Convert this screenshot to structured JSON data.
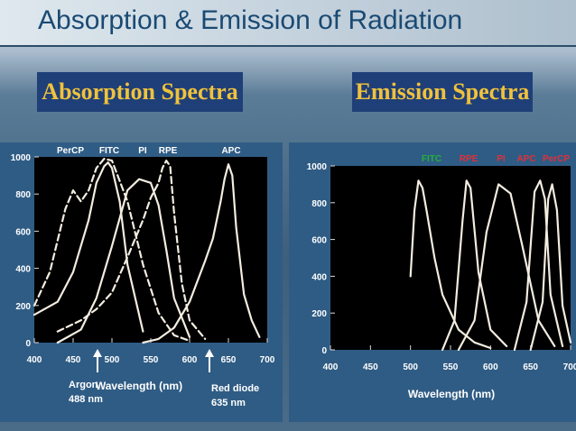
{
  "slide": {
    "title": "Absorption & Emission of Radiation"
  },
  "absorption": {
    "label": "Absorption Spectra",
    "dye_labels": [
      "PerCP",
      "FITC",
      "PI",
      "RPE",
      "APC"
    ],
    "y_ticks": [
      "0",
      "200",
      "400",
      "600",
      "800",
      "1000"
    ],
    "x_ticks": [
      "400",
      "450",
      "500",
      "550",
      "600",
      "650",
      "700"
    ],
    "x_label": "Wavelength (nm)",
    "laser_argon": {
      "name": "Argon",
      "wavelength": "488 nm"
    },
    "laser_red": {
      "name": "Red diode",
      "wavelength": "635 nm"
    }
  },
  "emission": {
    "label": "Emission Spectra",
    "dye_labels": [
      "FITC",
      "RPE",
      "PI",
      "APC",
      "PerCP"
    ],
    "dye_colors": [
      "#22b03a",
      "#e0303a",
      "#e0303a",
      "#e0303a",
      "#e0303a"
    ],
    "y_ticks": [
      "0",
      "200",
      "400",
      "600",
      "800",
      "1000"
    ],
    "x_ticks": [
      "400",
      "450",
      "500",
      "550",
      "600",
      "650",
      "700"
    ],
    "x_label": "Wavelength (nm)"
  },
  "chart_data": [
    {
      "type": "line",
      "name": "Absorption Spectra",
      "xlabel": "Wavelength (nm)",
      "ylabel": "",
      "xlim": [
        400,
        700
      ],
      "ylim": [
        0,
        1000
      ],
      "series": [
        {
          "name": "PerCP",
          "x": [
            400,
            420,
            440,
            450,
            460,
            470,
            480,
            490,
            500,
            520,
            540,
            560,
            580,
            600
          ],
          "y": [
            200,
            380,
            720,
            820,
            760,
            820,
            940,
            990,
            980,
            760,
            420,
            160,
            40,
            10
          ]
        },
        {
          "name": "FITC",
          "x": [
            400,
            430,
            450,
            470,
            480,
            490,
            495,
            500,
            510,
            520,
            540
          ],
          "y": [
            150,
            220,
            380,
            660,
            860,
            950,
            970,
            940,
            760,
            420,
            60
          ]
        },
        {
          "name": "PI",
          "x": [
            430,
            460,
            480,
            500,
            520,
            535,
            550,
            560,
            570,
            580,
            600
          ],
          "y": [
            0,
            70,
            240,
            520,
            820,
            880,
            860,
            740,
            500,
            240,
            30
          ]
        },
        {
          "name": "RPE",
          "x": [
            430,
            460,
            480,
            500,
            520,
            540,
            550,
            560,
            565,
            570,
            575,
            580,
            590,
            600,
            620
          ],
          "y": [
            60,
            120,
            180,
            270,
            460,
            660,
            780,
            860,
            940,
            980,
            950,
            700,
            320,
            120,
            20
          ]
        },
        {
          "name": "APC",
          "x": [
            540,
            560,
            580,
            600,
            620,
            630,
            640,
            645,
            650,
            655,
            660,
            670,
            680,
            690
          ],
          "y": [
            0,
            20,
            80,
            220,
            440,
            560,
            760,
            880,
            960,
            900,
            620,
            260,
            120,
            30
          ]
        }
      ],
      "annotations": [
        "Argon 488 nm",
        "Red diode 635 nm"
      ]
    },
    {
      "type": "line",
      "name": "Emission Spectra",
      "xlabel": "Wavelength (nm)",
      "ylabel": "",
      "xlim": [
        400,
        700
      ],
      "ylim": [
        0,
        1000
      ],
      "series": [
        {
          "name": "FITC",
          "x": [
            500,
            505,
            510,
            515,
            520,
            530,
            540,
            560,
            580,
            600
          ],
          "y": [
            400,
            760,
            920,
            880,
            760,
            500,
            300,
            110,
            40,
            10
          ]
        },
        {
          "name": "RPE",
          "x": [
            540,
            555,
            565,
            570,
            575,
            585,
            600,
            620
          ],
          "y": [
            0,
            160,
            700,
            920,
            880,
            420,
            110,
            20
          ]
        },
        {
          "name": "PI",
          "x": [
            560,
            580,
            595,
            610,
            625,
            640,
            660,
            680
          ],
          "y": [
            0,
            160,
            640,
            900,
            850,
            560,
            160,
            20
          ]
        },
        {
          "name": "APC",
          "x": [
            630,
            645,
            655,
            662,
            668,
            675,
            690
          ],
          "y": [
            0,
            260,
            860,
            920,
            820,
            300,
            20
          ]
        },
        {
          "name": "PerCP",
          "x": [
            650,
            665,
            672,
            677,
            683,
            690,
            700
          ],
          "y": [
            0,
            260,
            820,
            900,
            760,
            240,
            40
          ]
        }
      ]
    }
  ]
}
